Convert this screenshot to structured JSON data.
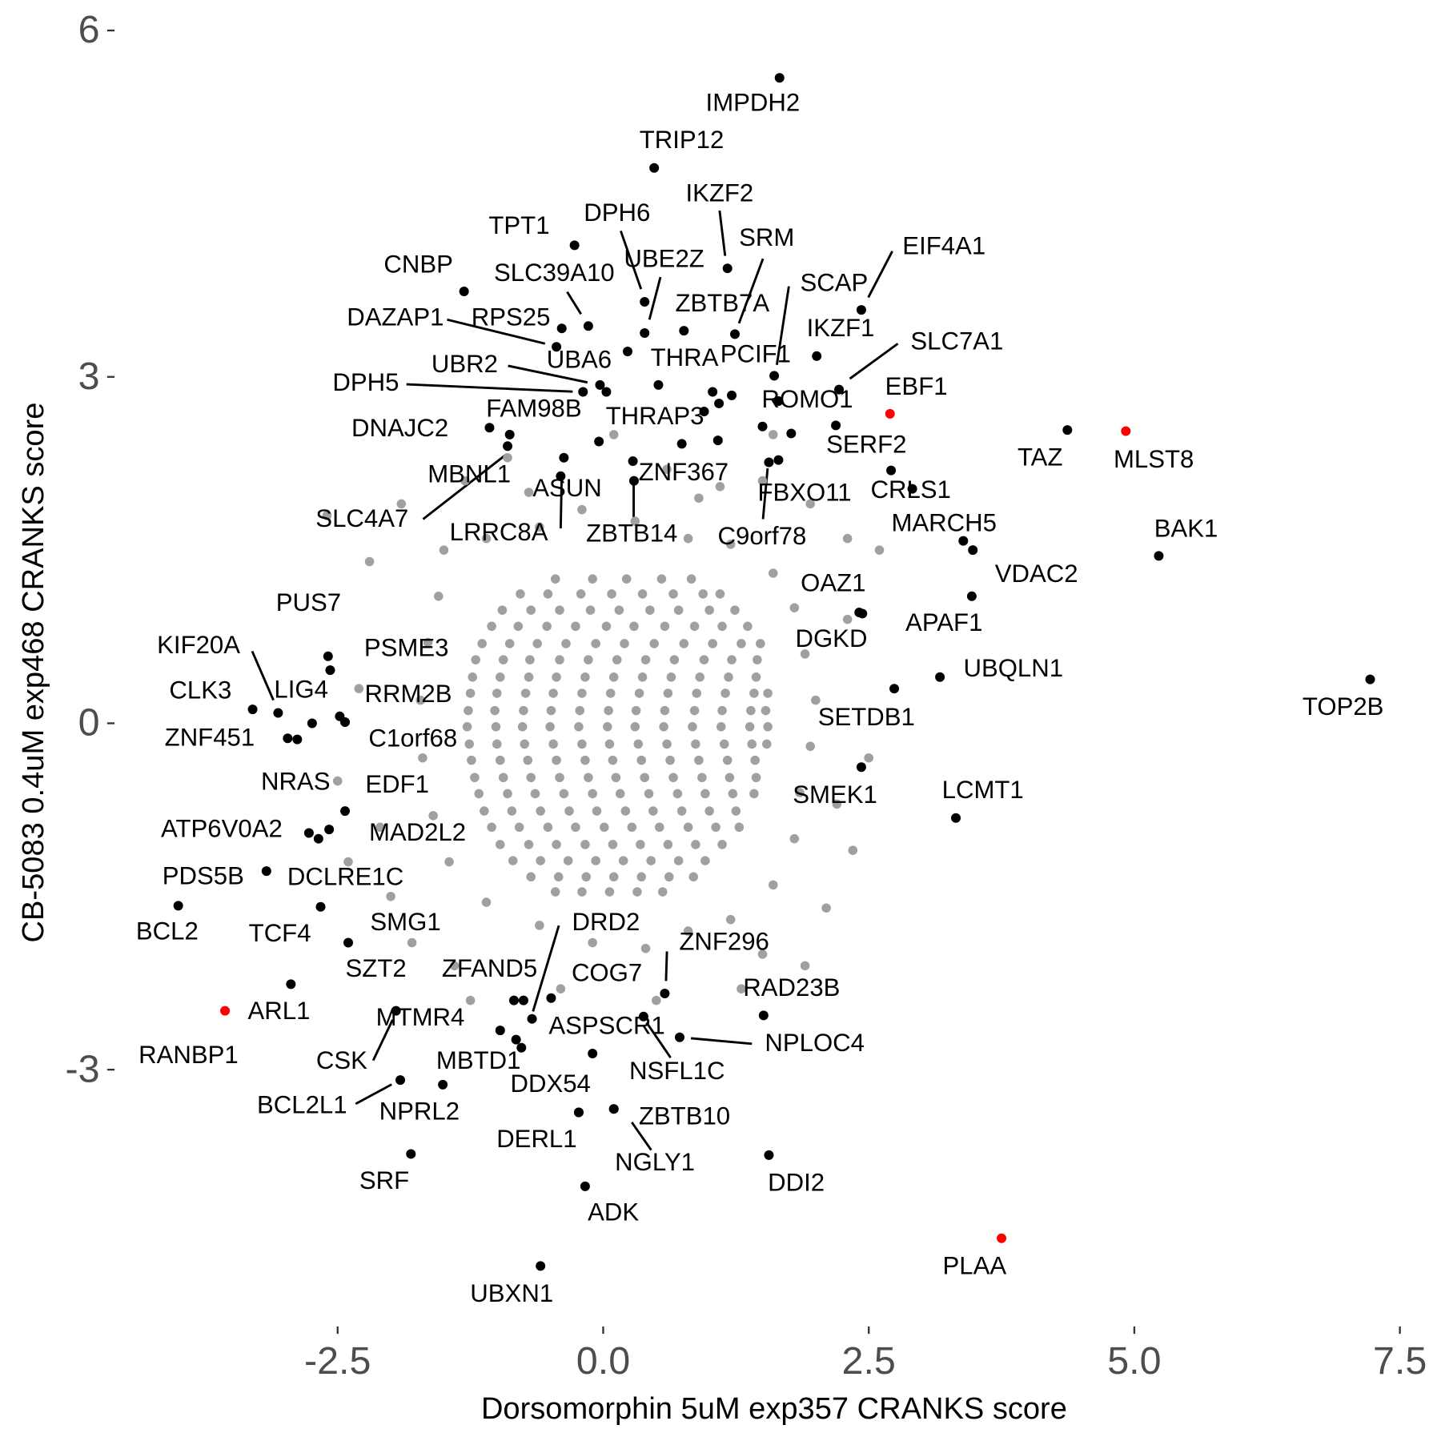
{
  "chart_data": {
    "type": "scatter",
    "x_label": "Dorsomorphin 5uM exp357 CRANKS score",
    "y_label": "CB-5083 0.4uM exp468 CRANKS score",
    "xlim": [
      -4.56,
      7.78
    ],
    "ylim": [
      -5.22,
      6.1
    ],
    "xticks": [
      -2.5,
      {
        "value": 0,
        "label": "0.0"
      },
      2.5,
      {
        "value": 5,
        "label": "5.0"
      },
      7.5
    ],
    "yticks": [
      6,
      3,
      0,
      -3
    ],
    "grid": false,
    "series": [
      {
        "color": "#a0a0a0",
        "x": [
          -0.45,
          -0.1,
          0.22,
          0.55,
          0.83,
          -0.78,
          -0.52,
          -0.21,
          0.08,
          0.37,
          0.66,
          0.94,
          1.1,
          -0.95,
          -0.68,
          -0.41,
          -0.12,
          0.15,
          0.44,
          0.71,
          1,
          1.24,
          -1.05,
          -0.8,
          -0.53,
          -0.26,
          0.03,
          0.29,
          0.58,
          0.86,
          1.12,
          1.36,
          -1.14,
          -0.88,
          -0.62,
          -0.35,
          -0.07,
          0.2,
          0.48,
          0.76,
          1.03,
          1.3,
          1.48,
          -1.2,
          -0.94,
          -0.69,
          -0.41,
          -0.14,
          0.13,
          0.4,
          0.67,
          0.95,
          1.21,
          1.45,
          -1.23,
          -0.97,
          -0.7,
          -0.44,
          -0.17,
          0.1,
          0.37,
          0.64,
          0.91,
          1.18,
          1.44,
          -1.25,
          -1,
          -0.73,
          -0.47,
          -0.2,
          0.07,
          0.34,
          0.61,
          0.88,
          1.15,
          1.42,
          1.55,
          -1.27,
          -1.02,
          -0.75,
          -0.49,
          -0.22,
          0.05,
          0.31,
          0.58,
          0.86,
          1.12,
          1.39,
          1.53,
          -1.28,
          -1.01,
          -0.76,
          -0.5,
          -0.23,
          0.04,
          0.3,
          0.57,
          0.84,
          1.11,
          1.38,
          1.55,
          -1.26,
          -1,
          -0.74,
          -0.47,
          -0.2,
          0.06,
          0.33,
          0.6,
          0.87,
          1.14,
          1.4,
          1.54,
          -1.24,
          -0.97,
          -0.71,
          -0.44,
          -0.17,
          0.09,
          0.36,
          0.63,
          0.9,
          1.17,
          1.43,
          -1.21,
          -0.94,
          -0.68,
          -0.41,
          -0.14,
          0.12,
          0.39,
          0.66,
          0.93,
          1.19,
          1.44,
          -1.17,
          -0.9,
          -0.64,
          -0.37,
          -0.1,
          0.16,
          0.43,
          0.7,
          0.96,
          1.22,
          1.42,
          -1.12,
          -0.86,
          -0.59,
          -0.32,
          -0.06,
          0.21,
          0.47,
          0.74,
          1,
          1.25,
          -1.05,
          -0.79,
          -0.52,
          -0.26,
          0.01,
          0.27,
          0.53,
          0.8,
          1.06,
          1.28,
          -0.97,
          -0.7,
          -0.44,
          -0.17,
          0.09,
          0.35,
          0.61,
          0.87,
          1.12,
          -0.85,
          -0.59,
          -0.33,
          -0.07,
          0.19,
          0.45,
          0.71,
          0.96,
          -0.68,
          -0.42,
          -0.16,
          0.1,
          0.36,
          0.62,
          0.85,
          -0.45,
          -0.2,
          0.06,
          0.32,
          0.56,
          -1.5,
          -1.1,
          -0.6,
          -0.2,
          0.3,
          0.8,
          1.2,
          1.6,
          1.8,
          1.9,
          2,
          1.95,
          1.85,
          1.8,
          1.6,
          1.2,
          0.8,
          0.4,
          -0.1,
          -0.6,
          -1.1,
          -1.45,
          -1.6,
          -1.7,
          -1.72,
          -1.65,
          -1.55,
          -2.2,
          -2.1,
          -2.3,
          -2,
          2.3,
          2.5,
          2.35,
          2.1,
          -1.3,
          -0.9,
          0.1,
          0.6,
          1.1,
          1.5,
          1.95,
          -1.9,
          -2.5,
          -0.4,
          0.5,
          1.5,
          2.3,
          -1.4,
          1.9,
          2.6,
          -2.6,
          -1.25,
          1.6,
          -0.7,
          0.9,
          -2.4,
          2.2,
          1.3,
          -1.8
        ],
        "y": [
          1.25,
          1.25,
          1.25,
          1.25,
          1.25,
          1.12,
          1.12,
          1.12,
          1.12,
          1.12,
          1.12,
          1.12,
          1.12,
          0.98,
          0.98,
          0.98,
          0.98,
          0.98,
          0.98,
          0.98,
          0.98,
          0.98,
          0.84,
          0.84,
          0.84,
          0.84,
          0.84,
          0.84,
          0.84,
          0.84,
          0.84,
          0.84,
          0.69,
          0.69,
          0.69,
          0.69,
          0.69,
          0.69,
          0.69,
          0.69,
          0.69,
          0.69,
          0.69,
          0.55,
          0.55,
          0.55,
          0.55,
          0.55,
          0.55,
          0.55,
          0.55,
          0.55,
          0.55,
          0.55,
          0.4,
          0.4,
          0.4,
          0.4,
          0.4,
          0.4,
          0.4,
          0.4,
          0.4,
          0.4,
          0.4,
          0.26,
          0.26,
          0.26,
          0.26,
          0.26,
          0.26,
          0.26,
          0.26,
          0.26,
          0.26,
          0.26,
          0.26,
          0.11,
          0.11,
          0.11,
          0.11,
          0.11,
          0.11,
          0.11,
          0.11,
          0.11,
          0.11,
          0.11,
          0.11,
          -0.03,
          -0.03,
          -0.03,
          -0.03,
          -0.03,
          -0.03,
          -0.03,
          -0.03,
          -0.03,
          -0.03,
          -0.03,
          -0.03,
          -0.18,
          -0.18,
          -0.18,
          -0.18,
          -0.18,
          -0.18,
          -0.18,
          -0.18,
          -0.18,
          -0.18,
          -0.18,
          -0.18,
          -0.32,
          -0.32,
          -0.32,
          -0.32,
          -0.32,
          -0.32,
          -0.32,
          -0.32,
          -0.32,
          -0.32,
          -0.32,
          -0.47,
          -0.47,
          -0.47,
          -0.47,
          -0.47,
          -0.47,
          -0.47,
          -0.47,
          -0.47,
          -0.47,
          -0.47,
          -0.61,
          -0.61,
          -0.61,
          -0.61,
          -0.61,
          -0.61,
          -0.61,
          -0.61,
          -0.61,
          -0.61,
          -0.61,
          -0.76,
          -0.76,
          -0.76,
          -0.76,
          -0.76,
          -0.76,
          -0.76,
          -0.76,
          -0.76,
          -0.76,
          -0.9,
          -0.9,
          -0.9,
          -0.9,
          -0.9,
          -0.9,
          -0.9,
          -0.9,
          -0.9,
          -0.9,
          -1.05,
          -1.05,
          -1.05,
          -1.05,
          -1.05,
          -1.05,
          -1.05,
          -1.05,
          -1.05,
          -1.19,
          -1.19,
          -1.19,
          -1.19,
          -1.19,
          -1.19,
          -1.19,
          -1.19,
          -1.33,
          -1.33,
          -1.33,
          -1.33,
          -1.33,
          -1.33,
          -1.33,
          -1.46,
          -1.46,
          -1.46,
          -1.46,
          -1.46,
          1.5,
          1.6,
          1.7,
          1.85,
          1.75,
          1.6,
          1.55,
          1.3,
          1,
          0.6,
          0.2,
          -0.2,
          -0.6,
          -1,
          -1.4,
          -1.7,
          -1.8,
          -1.95,
          -1.9,
          -1.75,
          -1.55,
          -1.2,
          -0.8,
          -0.3,
          0.2,
          0.7,
          1.1,
          1.4,
          -0.9,
          0.3,
          -1.5,
          1.6,
          -0.3,
          -1.1,
          -1.6,
          2.1,
          2.3,
          2.5,
          2.2,
          2.05,
          2.1,
          1.9,
          1.9,
          -0.5,
          -2.3,
          -2.4,
          -2,
          0.9,
          -2.1,
          -2.1,
          1.5,
          1.8,
          -2.4,
          2.5,
          2,
          1.95,
          -1.2,
          -0.7,
          -2.3,
          -1.9
        ]
      },
      {
        "color": "#000000",
        "labels": [
          "IMPDH2",
          "TRIP12",
          "IKZF2",
          "SRM",
          "TPT1",
          "DPH6",
          "UBE2Z",
          "CNBP",
          "SLC39A10",
          "EIF4A1",
          "SCAP",
          "ZBTB7A",
          "DAZAP1",
          "RPS25",
          "IKZF1",
          "UBA6",
          "UBR2",
          "DPH5",
          "THRA",
          "PCIF1",
          "SLC7A1",
          "ROMO1",
          "THRAP3",
          "FAM98B",
          "DNAJC2",
          "MBNL1",
          "SLC4A7",
          "SERF2",
          "TAZ",
          "ASUN",
          "LRRC8A",
          "ZNF367",
          "ZBTB14",
          "FBXO11",
          "CRLS1",
          "C9orf78",
          "MARCH5",
          "VDAC2",
          "BAK1",
          "OAZ1",
          "APAF1",
          "DGKD",
          "UBQLN1",
          "TOP2B",
          "SETDB1",
          "SMEK1",
          "LCMT1",
          "PUS7",
          "PSME3",
          "KIF20A",
          "CLK3",
          "LIG4",
          "RRM2B",
          "C1orf68",
          "ZNF451",
          "NRAS",
          "EDF1",
          "ATP6V0A2",
          "MAD2L2",
          "PDS5B",
          "DCLRE1C",
          "BCL2",
          "TCF4",
          "SMG1",
          "ARL1",
          "SZT2",
          "ZFAND5",
          "DRD2",
          "COG7",
          "MTMR4",
          "CSK",
          "MBTD1",
          "NPRL2",
          "BCL2L1",
          "ASPSCR1",
          "NSFL1C",
          "NPLOC4",
          "ZNF296",
          "RAD23B",
          "DDX54",
          "DERL1",
          "ZBTB10",
          "NGLY1",
          "SRF",
          "ADK",
          "DDI2",
          "UBXN1",
          null,
          null,
          null,
          null,
          null,
          null,
          null,
          null,
          null
        ],
        "x": [
          1.66,
          0.48,
          1.17,
          1.24,
          -0.27,
          0.39,
          0.39,
          -1.31,
          -0.14,
          2.43,
          1.61,
          0.76,
          -0.44,
          -0.39,
          2.01,
          0.03,
          -0.03,
          -0.19,
          0.52,
          1.21,
          2.22,
          1.65,
          0.74,
          -0.04,
          -1.07,
          -0.88,
          -0.9,
          2.19,
          4.37,
          -0.37,
          -0.4,
          0.28,
          0.29,
          1.65,
          2.71,
          1.56,
          3.39,
          3.48,
          5.23,
          2.41,
          3.47,
          2.44,
          3.17,
          7.22,
          2.74,
          2.43,
          3.32,
          -2.59,
          -2.57,
          -3.06,
          -3.3,
          -2.74,
          -2.48,
          -2.43,
          -2.97,
          -2.88,
          -2.43,
          -2.77,
          -2.58,
          -3.17,
          -2.66,
          -4,
          -2.4,
          -0.84,
          -2.94,
          -0.97,
          -0.75,
          -0.67,
          -0.49,
          -0.82,
          -1.95,
          -0.77,
          -1.51,
          -1.91,
          -0.1,
          0.38,
          0.72,
          0.58,
          1.51,
          -0.23,
          -0.23,
          0.1,
          0.1,
          -1.81,
          -0.17,
          1.56,
          -0.59,
          0.23,
          1.03,
          1.09,
          0.95,
          1.5,
          1.77,
          1.08,
          2.91,
          -2.68
        ],
        "y": [
          5.59,
          4.81,
          3.94,
          3.37,
          4.14,
          3.65,
          3.38,
          3.74,
          3.44,
          3.58,
          3.01,
          3.4,
          3.26,
          3.42,
          3.18,
          2.87,
          2.93,
          2.87,
          2.93,
          2.84,
          2.89,
          2.79,
          2.42,
          2.44,
          2.56,
          2.5,
          2.4,
          2.58,
          2.54,
          2.3,
          2.14,
          2.27,
          2.1,
          2.28,
          2.19,
          2.26,
          1.58,
          1.5,
          1.45,
          0.96,
          1.1,
          0.95,
          0.4,
          0.38,
          0.3,
          -0.38,
          -0.82,
          0.58,
          0.46,
          0.09,
          0.12,
          0,
          0.06,
          0.01,
          -0.13,
          -0.14,
          -0.76,
          -0.95,
          -0.92,
          -1.28,
          -1.59,
          -1.58,
          -1.9,
          -2.4,
          -2.26,
          -2.66,
          -2.4,
          -2.56,
          -2.38,
          -2.74,
          -2.49,
          -2.81,
          -3.13,
          -3.09,
          -2.86,
          -2.54,
          -2.72,
          -2.34,
          -2.53,
          -3.37,
          -3.37,
          -3.34,
          -3.34,
          -3.73,
          -4.01,
          -3.74,
          -4.7,
          3.22,
          2.87,
          2.77,
          2.7,
          2.57,
          2.51,
          2.45,
          2.03,
          -1
        ]
      },
      {
        "color": "#ff0000",
        "labels": [
          "EBF1",
          "MLST8",
          "RANBP1",
          "PLAA"
        ],
        "x": [
          2.7,
          4.92,
          -3.56,
          3.75
        ],
        "y": [
          2.68,
          2.53,
          -2.49,
          -4.46
        ]
      }
    ]
  }
}
